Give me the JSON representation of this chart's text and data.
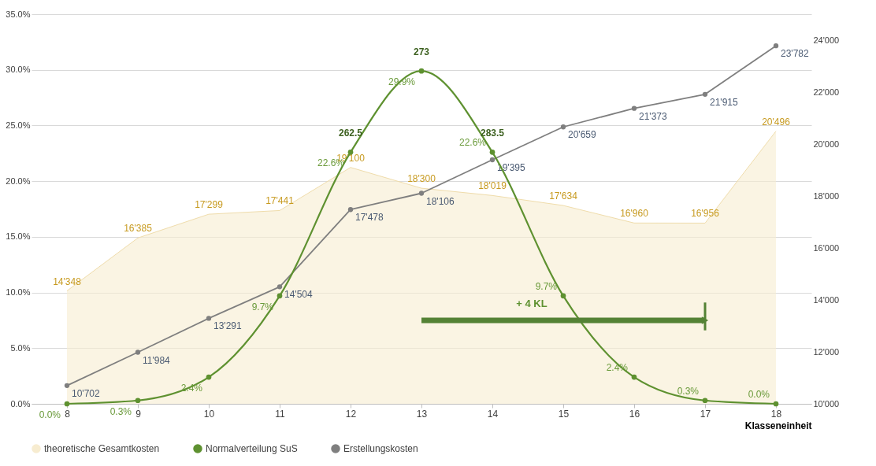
{
  "chart_data": {
    "type": "line",
    "xlabel": "Klasseneinheit",
    "categories": [
      "8",
      "9",
      "10",
      "11",
      "12",
      "13",
      "14",
      "15",
      "16",
      "17",
      "18"
    ],
    "series": [
      {
        "name": "theoretische Gesamtkosten",
        "type": "area",
        "axis": "y2",
        "marker": "none",
        "color": "#f7ecd0",
        "values": [
          14348,
          16385,
          17299,
          17441,
          19100,
          18300,
          18019,
          17634,
          16960,
          16956,
          20496
        ],
        "value_labels": [
          "14'348",
          "16'385",
          "17'299",
          "17'441",
          "19'100",
          "18'300",
          "18'019",
          "17'634",
          "16'960",
          "16'956",
          "20'496"
        ]
      },
      {
        "name": "Normalverteilung SuS",
        "color": "#5e9130",
        "values": [
          0.0,
          0.3,
          2.4,
          9.7,
          22.6,
          29.9,
          22.6,
          9.7,
          2.4,
          0.3,
          0.0
        ],
        "value_labels": [
          "0.0%",
          "0.3%",
          "2.4%",
          "9.7%",
          "22.6%",
          "29.9%",
          "22.6%",
          "9.7%",
          "2.4%",
          "0.3%",
          "0.0%"
        ]
      },
      {
        "name": "Erstellungskosten",
        "type": "line",
        "axis": "y2",
        "color": "#7f7f7f",
        "values": [
          10702,
          11984,
          13291,
          14504,
          17478,
          18106,
          19395,
          20659,
          21373,
          21915,
          23782
        ],
        "value_labels": [
          "10'702",
          "11'984",
          "13'291",
          "14'504",
          "17'478",
          "18'106",
          "19'395",
          "20'659",
          "21'373",
          "21'915",
          "23'782"
        ]
      }
    ],
    "ylim": [
      0,
      35
    ],
    "yticks": [
      {
        "value": 0,
        "label": "0.0%"
      },
      {
        "value": 5,
        "label": "5.0%"
      },
      {
        "value": 10,
        "label": "10.0%"
      },
      {
        "value": 15,
        "label": "15.0%"
      },
      {
        "value": 20,
        "label": "20.0%"
      },
      {
        "value": 25,
        "label": "25.0%"
      },
      {
        "value": 30,
        "label": "30.0%"
      },
      {
        "value": 35,
        "label": "35.0%"
      }
    ],
    "y2lim": [
      10000,
      25000
    ],
    "y2ticks": [
      {
        "value": 10000,
        "label": "10'000"
      },
      {
        "value": 12000,
        "label": "12'000"
      },
      {
        "value": 14000,
        "label": "14'000"
      },
      {
        "value": 16000,
        "label": "16'000"
      },
      {
        "value": 18000,
        "label": "18'000"
      },
      {
        "value": 20000,
        "label": "20'000"
      },
      {
        "value": 22000,
        "label": "22'000"
      },
      {
        "value": 24000,
        "label": "24'000"
      }
    ],
    "annotations": [
      {
        "text": "262.5",
        "x": "12",
        "y": 22.6
      },
      {
        "text": "273",
        "x": "13",
        "y": 29.9
      },
      {
        "text": "283.5",
        "x": "14",
        "y": 22.6
      },
      {
        "text": "+ 4 KL",
        "x": "15",
        "y": 9.0
      }
    ],
    "grid": "y",
    "legend": "bottom",
    "marker": "circle",
    "line_style": "solid"
  }
}
